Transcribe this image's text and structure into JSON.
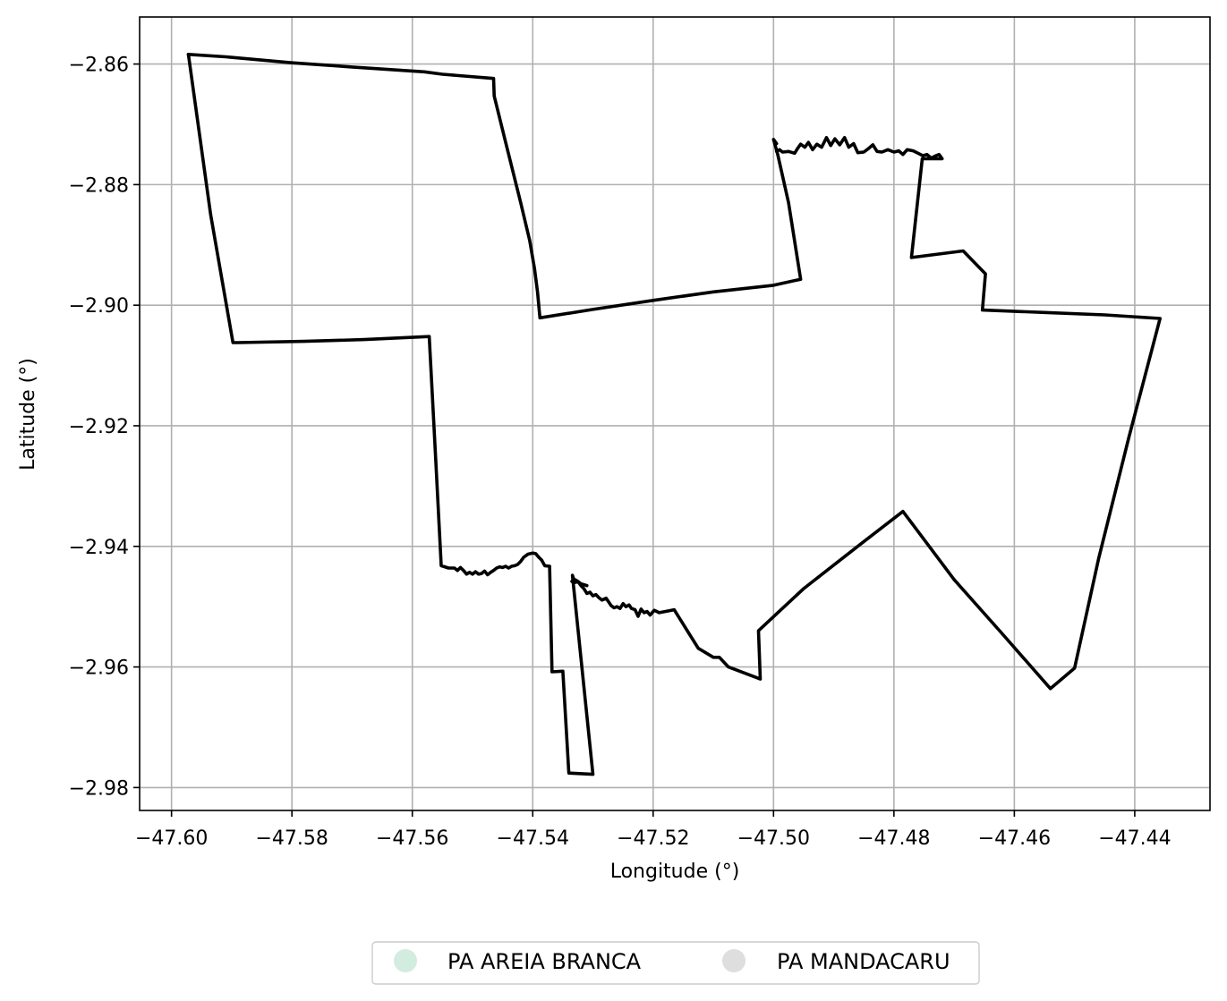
{
  "chart_data": {
    "type": "map",
    "xlabel": "Longitude (°)",
    "ylabel": "Latitude (°)",
    "xlim": [
      -47.6053,
      -47.4275
    ],
    "ylim": [
      -2.9838,
      -2.8522
    ],
    "grid": true,
    "x_ticks": [
      -47.6,
      -47.58,
      -47.56,
      -47.54,
      -47.52,
      -47.5,
      -47.48,
      -47.46,
      -47.44
    ],
    "x_tick_labels": [
      "−47.60",
      "−47.58",
      "−47.56",
      "−47.54",
      "−47.52",
      "−47.50",
      "−47.48",
      "−47.46",
      "−47.44"
    ],
    "y_ticks": [
      -2.86,
      -2.88,
      -2.9,
      -2.92,
      -2.94,
      -2.96,
      -2.98
    ],
    "y_tick_labels": [
      "−2.86",
      "−2.88",
      "−2.90",
      "−2.92",
      "−2.94",
      "−2.96",
      "−2.98"
    ],
    "legend": {
      "placement": "bottom-center",
      "entries": [
        {
          "name": "PA AREIA BRANCA",
          "color": "#d2ece0"
        },
        {
          "name": "PA MANDACARU",
          "color": "#dedede"
        }
      ]
    },
    "boundary_color": "#000000",
    "features": [
      {
        "name": "outline-1",
        "coordinates": [
          [
            -47.5972,
            -2.8584
          ],
          [
            -47.591,
            -2.8588
          ],
          [
            -47.58,
            -2.8598
          ],
          [
            -47.57,
            -2.8605
          ],
          [
            -47.558,
            -2.8613
          ],
          [
            -47.555,
            -2.8617
          ],
          [
            -47.5465,
            -2.8624
          ],
          [
            -47.5464,
            -2.8653
          ],
          [
            -47.5445,
            -2.873
          ],
          [
            -47.542,
            -2.883
          ],
          [
            -47.5405,
            -2.8893
          ],
          [
            -47.5397,
            -2.894
          ],
          [
            -47.5392,
            -2.8978
          ],
          [
            -47.5388,
            -2.9021
          ],
          [
            -47.53,
            -2.9007
          ],
          [
            -47.52,
            -2.8992
          ],
          [
            -47.51,
            -2.8978
          ],
          [
            -47.5,
            -2.8967
          ],
          [
            -47.4955,
            -2.8957
          ],
          [
            -47.4975,
            -2.883
          ],
          [
            -47.4993,
            -2.875
          ],
          [
            -47.5,
            -2.8725
          ],
          [
            -47.4995,
            -2.8732
          ]
        ]
      },
      {
        "name": "outline-2",
        "coordinates": [
          [
            -47.4995,
            -2.8745
          ],
          [
            -47.499,
            -2.8742
          ],
          [
            -47.4985,
            -2.8746
          ],
          [
            -47.4975,
            -2.8745
          ],
          [
            -47.4965,
            -2.8748
          ],
          [
            -47.496,
            -2.874
          ],
          [
            -47.4955,
            -2.8733
          ],
          [
            -47.4948,
            -2.8738
          ],
          [
            -47.4942,
            -2.873
          ],
          [
            -47.4935,
            -2.8742
          ],
          [
            -47.4928,
            -2.8733
          ],
          [
            -47.492,
            -2.8738
          ],
          [
            -47.4912,
            -2.8722
          ],
          [
            -47.4905,
            -2.8735
          ],
          [
            -47.4898,
            -2.8724
          ],
          [
            -47.489,
            -2.8734
          ],
          [
            -47.4882,
            -2.8722
          ],
          [
            -47.4875,
            -2.8738
          ],
          [
            -47.4867,
            -2.8732
          ],
          [
            -47.486,
            -2.8747
          ],
          [
            -47.485,
            -2.8746
          ],
          [
            -47.4842,
            -2.874
          ],
          [
            -47.4835,
            -2.8734
          ],
          [
            -47.4828,
            -2.8745
          ],
          [
            -47.482,
            -2.8746
          ],
          [
            -47.481,
            -2.8742
          ],
          [
            -47.48,
            -2.8746
          ],
          [
            -47.4792,
            -2.8744
          ],
          [
            -47.4785,
            -2.875
          ],
          [
            -47.4778,
            -2.8742
          ],
          [
            -47.4768,
            -2.8744
          ],
          [
            -47.476,
            -2.8748
          ],
          [
            -47.4752,
            -2.8752
          ],
          [
            -47.4745,
            -2.875
          ],
          [
            -47.4738,
            -2.8756
          ],
          [
            -47.473,
            -2.8752
          ],
          [
            -47.4725,
            -2.875
          ],
          [
            -47.472,
            -2.8757
          ],
          [
            -47.4753,
            -2.8757
          ],
          [
            -47.4771,
            -2.8921
          ],
          [
            -47.4685,
            -2.891
          ],
          [
            -47.4648,
            -2.8948
          ],
          [
            -47.4653,
            -2.9008
          ],
          [
            -47.455,
            -2.9012
          ],
          [
            -47.445,
            -2.9016
          ],
          [
            -47.4358,
            -2.9022
          ],
          [
            -47.441,
            -2.922
          ],
          [
            -47.446,
            -2.942
          ],
          [
            -47.45,
            -2.9602
          ],
          [
            -47.454,
            -2.9636
          ],
          [
            -47.462,
            -2.9545
          ],
          [
            -47.47,
            -2.9455
          ],
          [
            -47.4785,
            -2.9342
          ],
          [
            -47.485,
            -2.9392
          ],
          [
            -47.495,
            -2.947
          ],
          [
            -47.5025,
            -2.954
          ],
          [
            -47.5022,
            -2.962
          ],
          [
            -47.5075,
            -2.96
          ],
          [
            -47.509,
            -2.9584
          ],
          [
            -47.51,
            -2.9584
          ],
          [
            -47.5125,
            -2.9569
          ],
          [
            -47.5165,
            -2.9505
          ],
          [
            -47.518,
            -2.9508
          ],
          [
            -47.519,
            -2.951
          ],
          [
            -47.5198,
            -2.9506
          ],
          [
            -47.5205,
            -2.9514
          ],
          [
            -47.521,
            -2.9508
          ],
          [
            -47.5215,
            -2.951
          ],
          [
            -47.522,
            -2.9504
          ],
          [
            -47.5225,
            -2.9516
          ],
          [
            -47.523,
            -2.9505
          ],
          [
            -47.5236,
            -2.9503
          ],
          [
            -47.524,
            -2.9497
          ],
          [
            -47.5245,
            -2.95
          ],
          [
            -47.525,
            -2.9495
          ],
          [
            -47.5255,
            -2.9503
          ],
          [
            -47.526,
            -2.95
          ],
          [
            -47.5265,
            -2.9502
          ],
          [
            -47.527,
            -2.9498
          ],
          [
            -47.5278,
            -2.9486
          ],
          [
            -47.5285,
            -2.9489
          ],
          [
            -47.529,
            -2.9485
          ],
          [
            -47.5295,
            -2.948
          ],
          [
            -47.53,
            -2.9482
          ],
          [
            -47.5305,
            -2.9476
          ],
          [
            -47.531,
            -2.9478
          ],
          [
            -47.5315,
            -2.947
          ],
          [
            -47.532,
            -2.9465
          ],
          [
            -47.5325,
            -2.9458
          ],
          [
            -47.533,
            -2.946
          ],
          [
            -47.5334,
            -2.9448
          ],
          [
            -47.53,
            -2.9778
          ],
          [
            -47.534,
            -2.9776
          ],
          [
            -47.535,
            -2.9607
          ],
          [
            -47.5368,
            -2.9608
          ],
          [
            -47.5372,
            -2.9433
          ],
          [
            -47.538,
            -2.9432
          ],
          [
            -47.5385,
            -2.9423
          ],
          [
            -47.539,
            -2.9418
          ],
          [
            -47.5395,
            -2.9412
          ],
          [
            -47.54,
            -2.9411
          ],
          [
            -47.5408,
            -2.9413
          ],
          [
            -47.5415,
            -2.9418
          ],
          [
            -47.542,
            -2.9425
          ],
          [
            -47.5425,
            -2.943
          ],
          [
            -47.543,
            -2.9432
          ],
          [
            -47.5435,
            -2.9433
          ],
          [
            -47.544,
            -2.9436
          ],
          [
            -47.5445,
            -2.9433
          ],
          [
            -47.545,
            -2.9435
          ],
          [
            -47.5455,
            -2.9434
          ],
          [
            -47.546,
            -2.9436
          ],
          [
            -47.5465,
            -2.944
          ],
          [
            -47.547,
            -2.9443
          ],
          [
            -47.5475,
            -2.9447
          ],
          [
            -47.548,
            -2.9441
          ],
          [
            -47.5485,
            -2.9445
          ],
          [
            -47.549,
            -2.9446
          ],
          [
            -47.5495,
            -2.9442
          ],
          [
            -47.55,
            -2.9446
          ],
          [
            -47.5505,
            -2.9443
          ],
          [
            -47.551,
            -2.9446
          ],
          [
            -47.5515,
            -2.944
          ],
          [
            -47.552,
            -2.9435
          ],
          [
            -47.5525,
            -2.944
          ],
          [
            -47.553,
            -2.9436
          ],
          [
            -47.554,
            -2.9436
          ],
          [
            -47.5552,
            -2.9432
          ],
          [
            -47.5562,
            -2.924
          ],
          [
            -47.5572,
            -2.9052
          ],
          [
            -47.568,
            -2.9057
          ],
          [
            -47.578,
            -2.906
          ],
          [
            -47.589,
            -2.9062
          ],
          [
            -47.5898,
            -2.9062
          ],
          [
            -47.5935,
            -2.885
          ],
          [
            -47.5972,
            -2.8584
          ]
        ]
      },
      {
        "name": "outline-3",
        "coordinates": [
          [
            -47.5335,
            -2.9458
          ],
          [
            -47.533,
            -2.9455
          ],
          [
            -47.5325,
            -2.9458
          ],
          [
            -47.532,
            -2.9462
          ],
          [
            -47.531,
            -2.9465
          ]
        ]
      }
    ]
  }
}
